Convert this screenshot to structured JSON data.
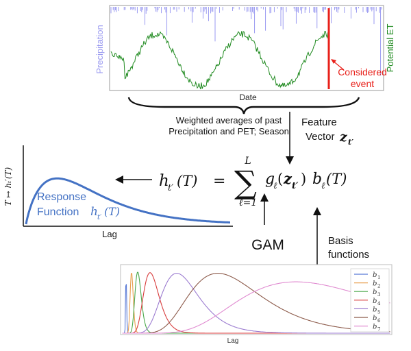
{
  "top_chart": {
    "ylabel_left": "Precipitation",
    "ylabel_right": "Potential ET",
    "xlabel": "Date",
    "annotation_line1": "Considered",
    "annotation_line2": "event",
    "colors": {
      "precip": "#8f8fef",
      "pet": "#1f8a1f",
      "event": "#e8201a"
    }
  },
  "brace_caption": {
    "line1": "Weighted averages of past",
    "line2": "Precipitation and PET; Season"
  },
  "feature_vector": {
    "line1": "Feature",
    "line2_text": "Vector",
    "symbol": "z",
    "subscript": "t′"
  },
  "equation": {
    "lhs_h": "h",
    "lhs_sub": "t′",
    "lhs_arg": "(T)",
    "equals": "=",
    "sigma": "∑",
    "sum_upper": "L",
    "sum_lower": "ℓ=1",
    "g": "g",
    "g_sub": "ℓ",
    "z": "z",
    "z_sub": "t′",
    "open_paren": "(",
    "close_paren": ")",
    "b": "b",
    "b_sub": "ℓ",
    "b_arg": "(T)"
  },
  "response_chart": {
    "ylabel": "T ↦ hₜ′(T)",
    "xlabel": "Lag",
    "label_line1": "Response",
    "label_line2": "Function",
    "label_h": "h",
    "label_sub": "t′",
    "label_arg": "(T)",
    "color": "#4472c4"
  },
  "gam_label": "GAM",
  "basis_label_line1": "Basis",
  "basis_label_line2": "functions",
  "basis_chart": {
    "xlabel": "Lag",
    "legend": [
      {
        "label": "b",
        "sub": "1",
        "color": "#5b7bd6"
      },
      {
        "label": "b",
        "sub": "2",
        "color": "#e8a050"
      },
      {
        "label": "b",
        "sub": "3",
        "color": "#4aa84a"
      },
      {
        "label": "b",
        "sub": "4",
        "color": "#d83c3c"
      },
      {
        "label": "b",
        "sub": "5",
        "color": "#9b7bd0"
      },
      {
        "label": "b",
        "sub": "6",
        "color": "#8c5a4a"
      },
      {
        "label": "b",
        "sub": "7",
        "color": "#e08ad0"
      }
    ]
  }
}
